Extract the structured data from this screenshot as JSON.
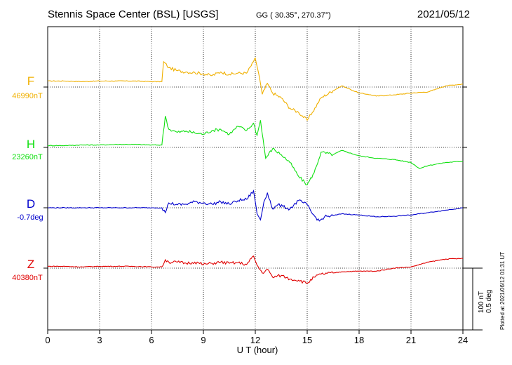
{
  "header": {
    "station": "Stennis Space Center (BSL)  [USGS]",
    "coords": "GG ( 30.35°, 270.37°)",
    "date": "2021/05/12"
  },
  "footer": {
    "plotted": "Plotted at 2021/06/12 01:31  UT",
    "scale_nt": "100 nT",
    "scale_deg": "0.5 deg"
  },
  "chart_data": {
    "type": "line",
    "xlabel": "U T (hour)",
    "xlim": [
      0,
      24
    ],
    "xticks": [
      0,
      3,
      6,
      9,
      12,
      15,
      18,
      21,
      24
    ],
    "grid": true,
    "scale": {
      "nT_per_bar": 100,
      "deg_per_bar": 0.5
    },
    "series": [
      {
        "name": "F",
        "baseline_label": "46990nT",
        "color": "#f0b000",
        "units": "nT",
        "baseline": 46990,
        "x": [
          0,
          1,
          2,
          3,
          4,
          5,
          6,
          6.6,
          6.7,
          7,
          7.5,
          8,
          8.5,
          9,
          9.5,
          10,
          10.5,
          11,
          11.5,
          11.9,
          12,
          12.2,
          12.4,
          12.7,
          13,
          13.5,
          14,
          14.5,
          15,
          15.3,
          15.8,
          16.5,
          17,
          17.5,
          18,
          18.5,
          19,
          20,
          21,
          22,
          23,
          24
        ],
        "y": [
          10,
          10,
          9,
          10,
          10,
          10,
          9,
          9,
          42,
          32,
          27,
          25,
          24,
          22,
          19,
          25,
          21,
          23,
          23,
          42,
          48,
          22,
          -12,
          6,
          -10,
          -18,
          -35,
          -42,
          -55,
          -42,
          -18,
          -6,
          2,
          -4,
          -10,
          -12,
          -15,
          -13,
          -10,
          -8,
          2,
          5
        ]
      },
      {
        "name": "H",
        "baseline_label": "23260nT",
        "color": "#10e010",
        "units": "nT",
        "baseline": 23260,
        "x": [
          0,
          1,
          2,
          3,
          4,
          5,
          6,
          6.6,
          6.8,
          7,
          7.5,
          8,
          8.5,
          9,
          9.5,
          10,
          10.5,
          11,
          11.5,
          11.9,
          12.1,
          12.3,
          12.6,
          13,
          13.5,
          14,
          14.5,
          15,
          15.4,
          15.8,
          16.5,
          17,
          18,
          19,
          20,
          21,
          21.5,
          22,
          23,
          24
        ],
        "y": [
          3,
          3,
          4,
          4,
          5,
          5,
          4,
          4,
          52,
          30,
          25,
          27,
          24,
          22,
          28,
          30,
          22,
          35,
          28,
          40,
          20,
          45,
          -18,
          -2,
          -12,
          -25,
          -48,
          -62,
          -42,
          -8,
          -12,
          -5,
          -14,
          -18,
          -20,
          -25,
          -35,
          -30,
          -25,
          -23
        ]
      },
      {
        "name": "D",
        "baseline_label": "-0.7deg",
        "color": "#0000cc",
        "units": "deg",
        "baseline": -0.7,
        "x": [
          0,
          1,
          2,
          3,
          4,
          5,
          6,
          6.6,
          6.8,
          7,
          7.5,
          8,
          8.5,
          9,
          9.5,
          10,
          10.5,
          11,
          11.5,
          11.9,
          12.1,
          12.3,
          12.5,
          12.7,
          13,
          13.3,
          13.6,
          14,
          14.5,
          15,
          15.3,
          15.7,
          16,
          16.5,
          17,
          18,
          19,
          20,
          21,
          22,
          23,
          24
        ],
        "y": [
          0,
          0,
          0,
          0,
          0,
          0,
          0,
          0,
          -8,
          8,
          5,
          6,
          10,
          8,
          6,
          10,
          6,
          12,
          14,
          28,
          -10,
          -20,
          10,
          25,
          -2,
          5,
          2,
          -2,
          12,
          5,
          -10,
          -22,
          -15,
          -13,
          -10,
          -12,
          -15,
          -14,
          -12,
          -8,
          -4,
          0
        ]
      },
      {
        "name": "Z",
        "baseline_label": "40380nT",
        "color": "#e00000",
        "units": "nT",
        "baseline": 40380,
        "x": [
          0,
          1,
          2,
          3,
          4,
          5,
          6,
          6.6,
          6.8,
          7,
          7.5,
          8,
          8.5,
          9,
          9.5,
          10,
          10.5,
          11,
          11.5,
          11.9,
          12.1,
          12.4,
          12.7,
          13,
          13.5,
          14,
          14.5,
          15,
          15.4,
          15.8,
          16.5,
          17,
          18,
          19,
          20,
          21,
          22,
          23,
          24
        ],
        "y": [
          3,
          3,
          2,
          3,
          3,
          3,
          2,
          2,
          14,
          10,
          10,
          8,
          10,
          6,
          8,
          10,
          8,
          9,
          6,
          20,
          5,
          -8,
          -2,
          -15,
          -12,
          -18,
          -20,
          -25,
          -15,
          -10,
          -8,
          -6,
          -5,
          -5,
          0,
          2,
          10,
          15,
          16
        ]
      }
    ]
  }
}
